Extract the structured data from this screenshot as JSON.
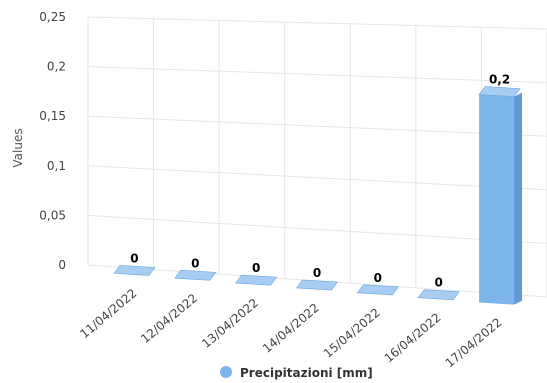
{
  "chart_data": {
    "type": "bar",
    "title": "",
    "ylabel": "Values",
    "xlabel": "",
    "categories": [
      "11/04/2022",
      "12/04/2022",
      "13/04/2022",
      "14/04/2022",
      "15/04/2022",
      "16/04/2022",
      "17/04/2022"
    ],
    "series": [
      {
        "name": "Precipitazioni [mm]",
        "values": [
          0,
          0,
          0,
          0,
          0,
          0,
          0.2
        ],
        "labels": [
          "0",
          "0",
          "0",
          "0",
          "0",
          "0",
          "0,2"
        ]
      }
    ],
    "ylim": [
      0,
      0.25
    ],
    "yticks": [
      0,
      0.05,
      0.1,
      0.15,
      0.2,
      0.25
    ],
    "ytick_labels": [
      "0",
      "0,05",
      "0,1",
      "0,15",
      "0,2",
      "0,25"
    ],
    "grid": true,
    "legend_position": "bottom",
    "style": "3d",
    "bar_color": "#7cb5ec"
  }
}
